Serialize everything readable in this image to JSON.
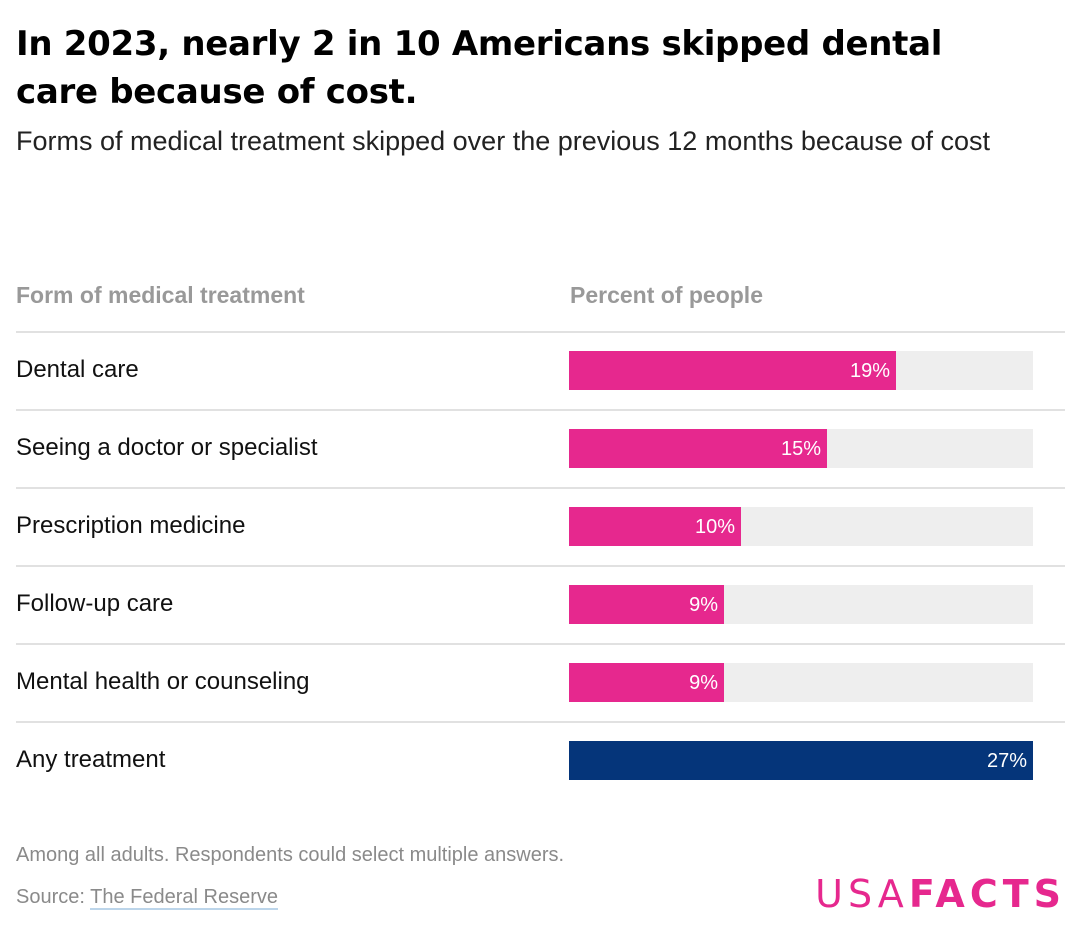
{
  "title": "In 2023, nearly 2 in 10 Americans skipped dental care because of cost.",
  "subtitle": "Forms of medical treatment skipped over the previous 12 months because of cost",
  "columns": {
    "left": "Form of medical treatment",
    "right": "Percent of people"
  },
  "note": "Among all adults. Respondents could select multiple answers.",
  "source": {
    "prefix": "Source: ",
    "link_text": "The Federal Reserve"
  },
  "logo": {
    "part1": "USA",
    "part2": "FACTS"
  },
  "colors": {
    "pink": "#E6288E",
    "navy": "#05357A",
    "track": "#EEEEEE"
  },
  "chart_data": {
    "type": "bar",
    "orientation": "horizontal",
    "categories": [
      "Dental care",
      "Seeing a doctor or specialist",
      "Prescription medicine",
      "Follow-up care",
      "Mental health or counseling",
      "Any treatment"
    ],
    "values": [
      19,
      15,
      10,
      9,
      9,
      27
    ],
    "value_labels": [
      "19%",
      "15%",
      "10%",
      "9%",
      "9%",
      "27%"
    ],
    "highlight": [
      false,
      false,
      false,
      false,
      false,
      true
    ],
    "xlim": [
      0,
      27
    ]
  }
}
